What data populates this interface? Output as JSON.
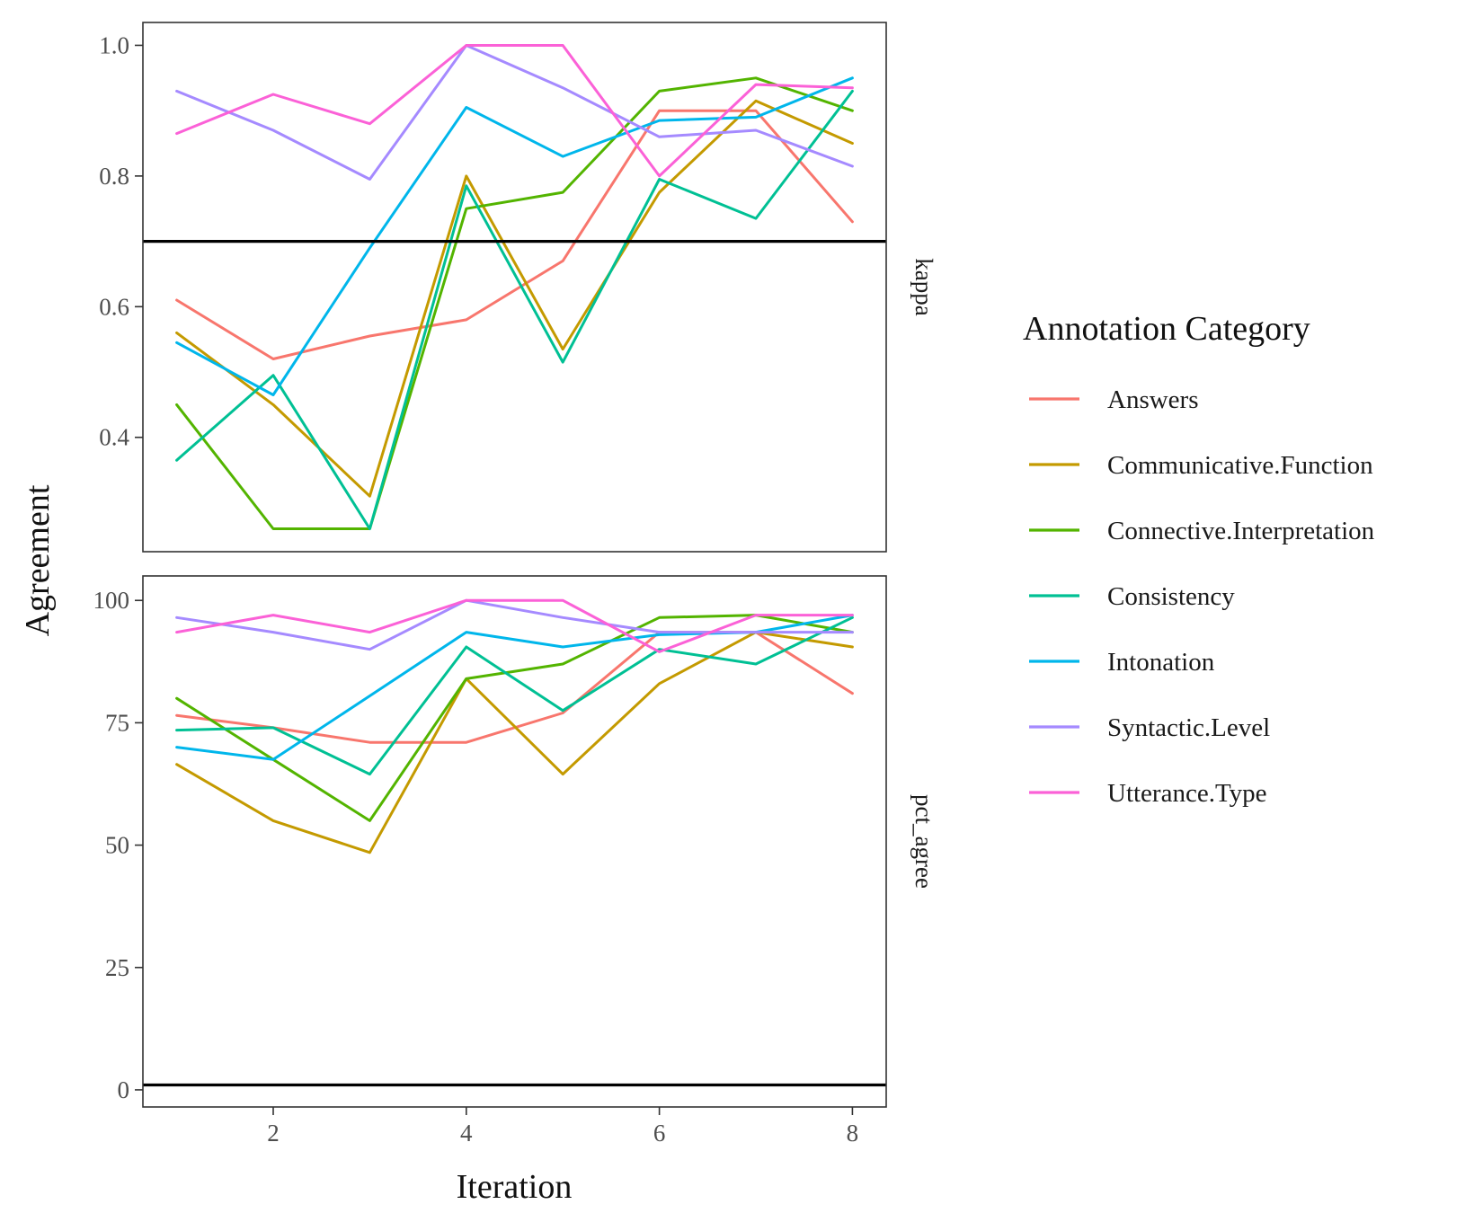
{
  "chart_data": {
    "type": "line",
    "xlabel": "Iteration",
    "ylabel": "Agreement",
    "x": [
      1,
      2,
      3,
      4,
      5,
      6,
      7,
      8
    ],
    "x_ticks": [
      "2",
      "4",
      "6",
      "8"
    ],
    "x_tick_values": [
      2,
      4,
      6,
      8
    ],
    "xlim": [
      0.65,
      8.35
    ],
    "grid": false,
    "legend": {
      "title": "Annotation Category",
      "position": "right"
    },
    "series": [
      {
        "name": "Answers",
        "color": "#F8766D"
      },
      {
        "name": "Communicative.Function",
        "color": "#C49A00"
      },
      {
        "name": "Connective.Interpretation",
        "color": "#53B400"
      },
      {
        "name": "Consistency",
        "color": "#00C094"
      },
      {
        "name": "Intonation",
        "color": "#00B6EB"
      },
      {
        "name": "Syntactic.Level",
        "color": "#A58AFF"
      },
      {
        "name": "Utterance.Type",
        "color": "#FB61D7"
      }
    ],
    "panels": [
      {
        "facet": "kappa",
        "ylim": [
          0.225,
          1.035
        ],
        "y_ticks": [
          "0.4",
          "0.6",
          "0.8",
          "1.0"
        ],
        "y_tick_values": [
          0.4,
          0.6,
          0.8,
          1.0
        ],
        "reference_line": 0.7,
        "values": [
          [
            0.61,
            0.52,
            0.555,
            0.58,
            0.67,
            0.9,
            0.9,
            0.73
          ],
          [
            0.56,
            0.45,
            0.31,
            0.8,
            0.535,
            0.775,
            0.915,
            0.85
          ],
          [
            0.45,
            0.26,
            0.26,
            0.75,
            0.775,
            0.93,
            0.95,
            0.9
          ],
          [
            0.365,
            0.495,
            0.26,
            0.785,
            0.515,
            0.795,
            0.735,
            0.93
          ],
          [
            0.545,
            0.465,
            0.69,
            0.905,
            0.83,
            0.885,
            0.89,
            0.95
          ],
          [
            0.93,
            0.87,
            0.795,
            1.0,
            0.935,
            0.86,
            0.87,
            0.815
          ],
          [
            0.865,
            0.925,
            0.88,
            1.0,
            1.0,
            0.8,
            0.94,
            0.935
          ]
        ]
      },
      {
        "facet": "pct_agree",
        "ylim": [
          -3.5,
          105
        ],
        "y_ticks": [
          "0",
          "25",
          "50",
          "75",
          "100"
        ],
        "y_tick_values": [
          0,
          25,
          50,
          75,
          100
        ],
        "reference_line": 1,
        "values": [
          [
            76.5,
            74,
            71,
            71,
            77,
            93.5,
            93.5,
            81
          ],
          [
            66.5,
            55,
            48.5,
            84,
            64.5,
            83,
            93.5,
            90.5
          ],
          [
            80,
            67.5,
            55,
            84,
            87,
            96.5,
            97,
            93.5
          ],
          [
            73.5,
            74,
            64.5,
            90.5,
            77.5,
            90,
            87,
            96.5
          ],
          [
            70,
            67.5,
            80.5,
            93.5,
            90.5,
            93,
            93.5,
            97
          ],
          [
            96.5,
            93.5,
            90,
            100,
            96.5,
            93.5,
            93.5,
            93.5
          ],
          [
            93.5,
            97,
            93.5,
            100,
            100,
            89.5,
            97,
            97
          ]
        ]
      }
    ]
  }
}
